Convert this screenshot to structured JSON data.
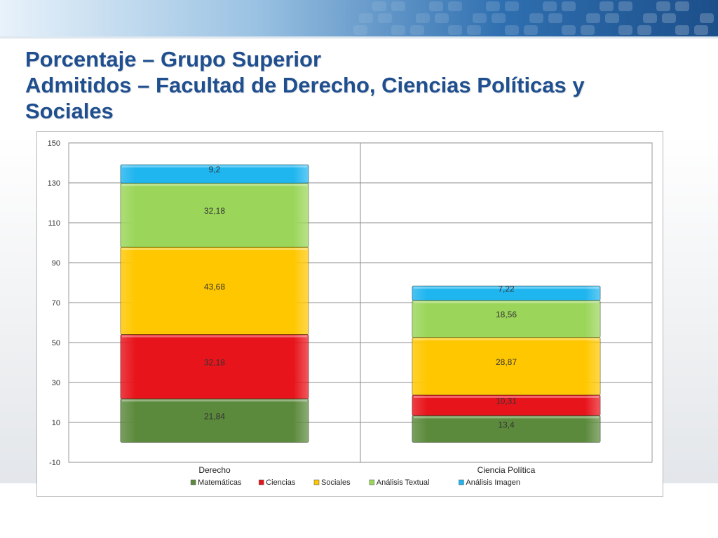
{
  "slide": {
    "title_line1": "Porcentaje – Grupo Superior",
    "title_line2": "Admitidos – Facultad de Derecho, Ciencias Políticas y",
    "title_line3": "Sociales"
  },
  "colors": {
    "title": "#1f4f8f",
    "matematicas": "#5c8a3c",
    "ciencias": "#e8141b",
    "sociales": "#ffc700",
    "analisis_textual": "#9bd65a",
    "analisis_imagen": "#1fb5ef"
  },
  "chart_data": {
    "type": "bar",
    "stacked": true,
    "title": "",
    "xlabel": "",
    "ylabel": "",
    "ylim": [
      -10,
      150
    ],
    "yticks": [
      150,
      130,
      110,
      90,
      70,
      50,
      30,
      10,
      -10
    ],
    "grid": true,
    "legend_position": "bottom",
    "categories": [
      "Derecho",
      "Ciencia Política"
    ],
    "series": [
      {
        "name": "Matemáticas",
        "color": "#5c8a3c",
        "values": [
          21.84,
          13.4
        ],
        "labels": [
          "21,84",
          "13,4"
        ]
      },
      {
        "name": "Ciencias",
        "color": "#e8141b",
        "values": [
          32.18,
          10.31
        ],
        "labels": [
          "32,18",
          "10,31"
        ]
      },
      {
        "name": "Sociales",
        "color": "#ffc700",
        "values": [
          43.68,
          28.87
        ],
        "labels": [
          "43,68",
          "28,87"
        ]
      },
      {
        "name": "Análisis Textual",
        "color": "#9bd65a",
        "values": [
          32.18,
          18.56
        ],
        "labels": [
          "32,18",
          "18,56"
        ]
      },
      {
        "name": "Análisis Imagen",
        "color": "#1fb5ef",
        "values": [
          9.2,
          7.22
        ],
        "labels": [
          "9,2",
          "7,22"
        ]
      }
    ]
  }
}
